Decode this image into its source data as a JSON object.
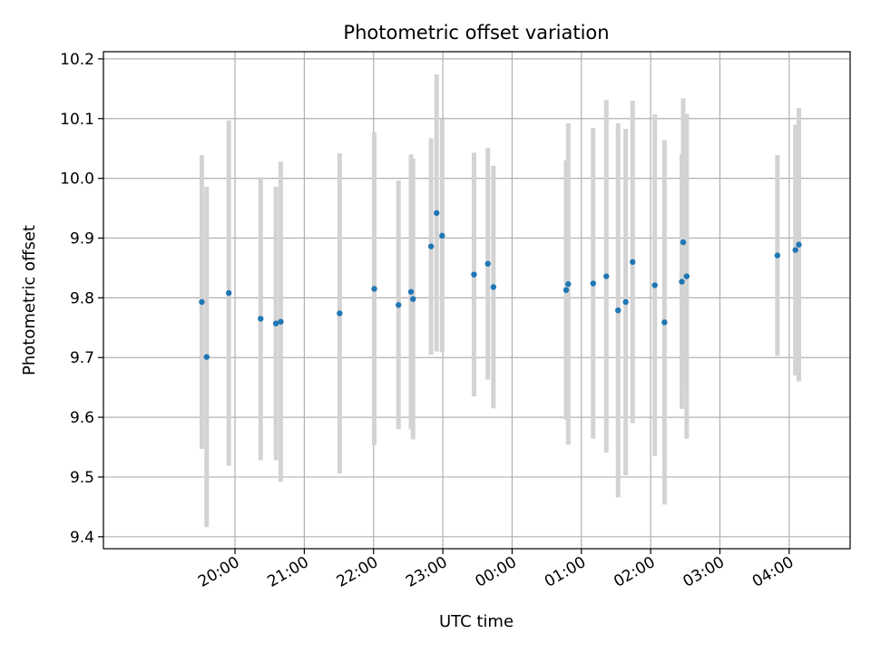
{
  "chart_data": {
    "type": "scatter",
    "title": "Photometric offset variation",
    "xlabel": "UTC time",
    "ylabel": "Photometric offset",
    "grid": true,
    "errorbar_color": "#d3d3d3",
    "point_color": "#1f77b4",
    "x_unit": "hours after 19:00 UTC",
    "xlim": [
      -0.9,
      9.88
    ],
    "ylim": [
      9.38,
      10.212
    ],
    "x_ticks": [
      {
        "label": "20:00",
        "value": 1
      },
      {
        "label": "21:00",
        "value": 2
      },
      {
        "label": "22:00",
        "value": 3
      },
      {
        "label": "23:00",
        "value": 4
      },
      {
        "label": "00:00",
        "value": 5
      },
      {
        "label": "01:00",
        "value": 6
      },
      {
        "label": "02:00",
        "value": 7
      },
      {
        "label": "03:00",
        "value": 8
      },
      {
        "label": "04:00",
        "value": 9
      }
    ],
    "y_ticks": [
      {
        "label": "9.4",
        "value": 9.4
      },
      {
        "label": "9.5",
        "value": 9.5
      },
      {
        "label": "9.6",
        "value": 9.6
      },
      {
        "label": "9.7",
        "value": 9.7
      },
      {
        "label": "9.8",
        "value": 9.8
      },
      {
        "label": "9.9",
        "value": 9.9
      },
      {
        "label": "10.0",
        "value": 10.0
      },
      {
        "label": "10.1",
        "value": 10.1
      },
      {
        "label": "10.2",
        "value": 10.2
      }
    ],
    "points": [
      {
        "x": 0.52,
        "y": 9.793,
        "err": 0.246
      },
      {
        "x": 0.59,
        "y": 9.701,
        "err": 0.285
      },
      {
        "x": 0.91,
        "y": 9.808,
        "err": 0.289
      },
      {
        "x": 1.37,
        "y": 9.765,
        "err": 0.237
      },
      {
        "x": 1.59,
        "y": 9.757,
        "err": 0.229
      },
      {
        "x": 1.66,
        "y": 9.76,
        "err": 0.268
      },
      {
        "x": 2.51,
        "y": 9.774,
        "err": 0.268
      },
      {
        "x": 3.01,
        "y": 9.815,
        "err": 0.262
      },
      {
        "x": 3.36,
        "y": 9.788,
        "err": 0.208
      },
      {
        "x": 3.54,
        "y": 9.81,
        "err": 0.23
      },
      {
        "x": 3.57,
        "y": 9.798,
        "err": 0.235
      },
      {
        "x": 3.83,
        "y": 9.886,
        "err": 0.181
      },
      {
        "x": 3.91,
        "y": 9.942,
        "err": 0.232
      },
      {
        "x": 3.99,
        "y": 9.904,
        "err": 0.195
      },
      {
        "x": 4.45,
        "y": 9.839,
        "err": 0.204
      },
      {
        "x": 4.65,
        "y": 9.857,
        "err": 0.194
      },
      {
        "x": 4.73,
        "y": 9.818,
        "err": 0.203
      },
      {
        "x": 5.78,
        "y": 9.813,
        "err": 0.217
      },
      {
        "x": 5.81,
        "y": 9.823,
        "err": 0.269
      },
      {
        "x": 6.17,
        "y": 9.824,
        "err": 0.26
      },
      {
        "x": 6.36,
        "y": 9.836,
        "err": 0.295
      },
      {
        "x": 6.53,
        "y": 9.779,
        "err": 0.313
      },
      {
        "x": 6.64,
        "y": 9.793,
        "err": 0.29
      },
      {
        "x": 6.74,
        "y": 9.86,
        "err": 0.27
      },
      {
        "x": 7.06,
        "y": 9.821,
        "err": 0.286
      },
      {
        "x": 7.2,
        "y": 9.759,
        "err": 0.305
      },
      {
        "x": 7.45,
        "y": 9.827,
        "err": 0.213
      },
      {
        "x": 7.47,
        "y": 9.893,
        "err": 0.241
      },
      {
        "x": 7.52,
        "y": 9.836,
        "err": 0.272
      },
      {
        "x": 8.83,
        "y": 9.871,
        "err": 0.168
      },
      {
        "x": 9.09,
        "y": 9.88,
        "err": 0.21
      },
      {
        "x": 9.14,
        "y": 9.889,
        "err": 0.229
      }
    ]
  }
}
